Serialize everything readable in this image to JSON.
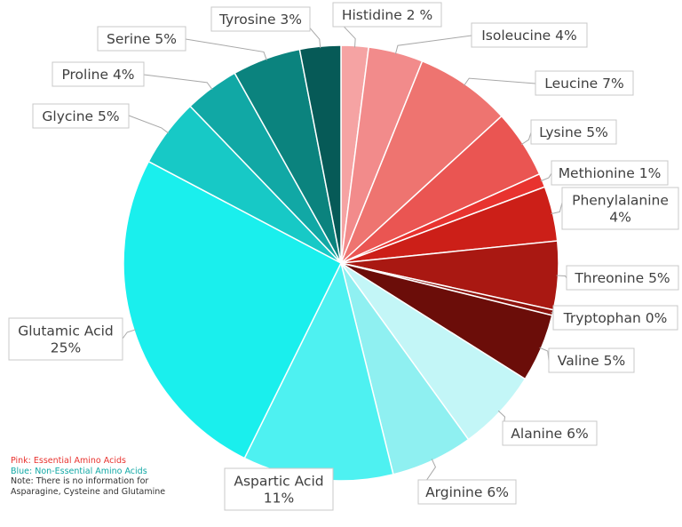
{
  "chart_data": {
    "type": "pie",
    "title": "",
    "slices": [
      {
        "label": "Histidine 2 %",
        "value": 2,
        "color": "#f5a3a3"
      },
      {
        "label": "Isoleucine 4%",
        "value": 4,
        "color": "#f28b8b"
      },
      {
        "label": "Leucine 7%",
        "value": 7,
        "color": "#ee7470"
      },
      {
        "label": "Lysine 5%",
        "value": 5,
        "color": "#ea5552"
      },
      {
        "label": "Methionine 1%",
        "value": 1,
        "color": "#e8332f"
      },
      {
        "label": "Phenylalanine 4%",
        "value": 4,
        "color": "#cc1f18"
      },
      {
        "label": "Threonine 5%",
        "value": 5,
        "color": "#a91812"
      },
      {
        "label": "Tryptophan 0%",
        "value": 0.4,
        "color": "#8c120d"
      },
      {
        "label": "Valine 5%",
        "value": 5,
        "color": "#6b0d09"
      },
      {
        "label": "Alanine 6%",
        "value": 6,
        "color": "#c3f6f7"
      },
      {
        "label": "Arginine 6%",
        "value": 6,
        "color": "#8ff0f1"
      },
      {
        "label": "Aspartic Acid 11%",
        "value": 11,
        "color": "#4ef1f1"
      },
      {
        "label": "Glutamic Acid 25%",
        "value": 25,
        "color": "#1aefed"
      },
      {
        "label": "Glycine 5%",
        "value": 5,
        "color": "#17c9c6"
      },
      {
        "label": "Proline 4%",
        "value": 4,
        "color": "#11a8a5"
      },
      {
        "label": "Serine 5%",
        "value": 5,
        "color": "#0b837e"
      },
      {
        "label": "Tyrosine 3%",
        "value": 3,
        "color": "#065a57"
      }
    ],
    "labels": [
      {
        "lines": [
          "Histidine 2 %"
        ]
      },
      {
        "lines": [
          "Isoleucine 4%"
        ]
      },
      {
        "lines": [
          "Leucine 7%"
        ]
      },
      {
        "lines": [
          "Lysine 5%"
        ]
      },
      {
        "lines": [
          "Methionine 1%"
        ]
      },
      {
        "lines": [
          "Phenylalanine",
          "4%"
        ]
      },
      {
        "lines": [
          "Threonine 5%"
        ]
      },
      {
        "lines": [
          "Tryptophan 0%"
        ]
      },
      {
        "lines": [
          "Valine 5%"
        ]
      },
      {
        "lines": [
          "Alanine 6%"
        ]
      },
      {
        "lines": [
          "Arginine 6%"
        ]
      },
      {
        "lines": [
          "Aspartic Acid",
          "11%"
        ]
      },
      {
        "lines": [
          "Glutamic Acid",
          "25%"
        ]
      },
      {
        "lines": [
          "Glycine 5%"
        ]
      },
      {
        "lines": [
          "Proline 4%"
        ]
      },
      {
        "lines": [
          "Serine 5%"
        ]
      },
      {
        "lines": [
          "Tyrosine 3%"
        ]
      }
    ],
    "legend": "none",
    "start": "top, clockwise"
  },
  "notes": {
    "essential": "Pink: Essential Amino Acids",
    "non_essential": "Blue: Non-Essential Amino Acids",
    "note": "Note: There is no information for Asparagine, Cysteine and Glutamine",
    "essential_color": "#e8332f",
    "non_essential_color": "#11a8a5",
    "note_color": "#333333"
  }
}
